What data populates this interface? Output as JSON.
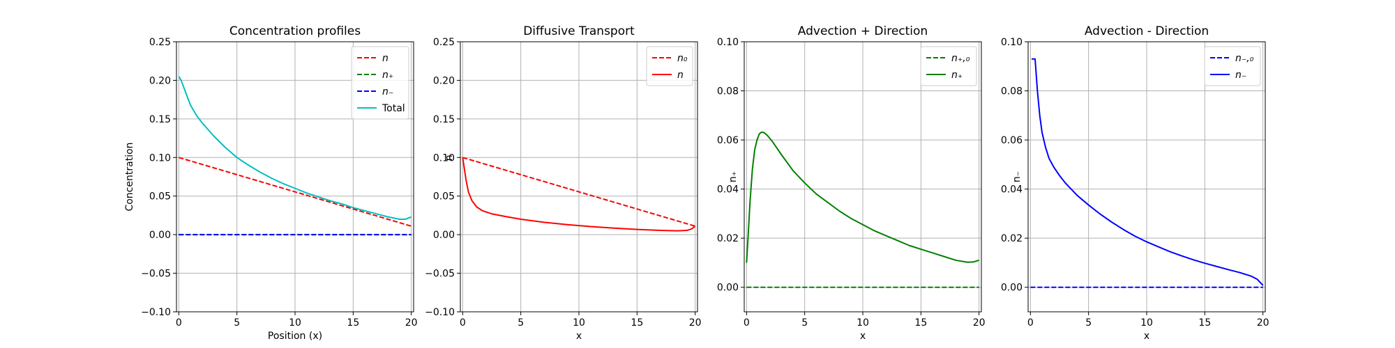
{
  "colors": {
    "red": "#ff0000",
    "green": "#008000",
    "blue": "#0000ff",
    "cyan": "#00bfbf",
    "grid": "#b0b0b0"
  },
  "chart_data": [
    {
      "type": "line",
      "title": "Concentration profiles",
      "xlabel": "Position (x)",
      "ylabel": "Concentration",
      "xlim": [
        -0.2,
        20.2
      ],
      "ylim": [
        -0.1,
        0.25
      ],
      "xticks": [
        "0",
        "5",
        "10",
        "15",
        "20"
      ],
      "xtick_values": [
        0,
        5,
        10,
        15,
        20
      ],
      "yticks": [
        "−0.10",
        "−0.05",
        "0.00",
        "0.05",
        "0.10",
        "0.15",
        "0.20",
        "0.25"
      ],
      "ytick_values": [
        -0.1,
        -0.05,
        0,
        0.05,
        0.1,
        0.15,
        0.2,
        0.25
      ],
      "grid": true,
      "legend_position": "top-right",
      "series": [
        {
          "name": "n",
          "color": "#ff0000",
          "style": "dashed",
          "x": [
            0,
            20
          ],
          "y": [
            0.1,
            0.011
          ]
        },
        {
          "name": "n₊",
          "color": "#008000",
          "style": "dashed",
          "x": [
            0,
            20
          ],
          "y": [
            0,
            0
          ]
        },
        {
          "name": "n₋",
          "color": "#0000ff",
          "style": "dashed",
          "x": [
            0,
            20
          ],
          "y": [
            0,
            0
          ]
        },
        {
          "name": "Total",
          "color": "#00bfbf",
          "style": "solid",
          "x": [
            0,
            0.2,
            0.5,
            1,
            1.5,
            2,
            3,
            4,
            5,
            6,
            7,
            8,
            9,
            10,
            11,
            12,
            13,
            14,
            15,
            16,
            17,
            18,
            19,
            19.5,
            20
          ],
          "y": [
            0.205,
            0.2,
            0.188,
            0.168,
            0.155,
            0.145,
            0.128,
            0.113,
            0.1,
            0.09,
            0.081,
            0.073,
            0.066,
            0.06,
            0.054,
            0.049,
            0.044,
            0.04,
            0.035,
            0.031,
            0.027,
            0.023,
            0.02,
            0.02,
            0.023
          ]
        }
      ]
    },
    {
      "type": "line",
      "title": "Diffusive Transport",
      "xlabel": "x",
      "ylabel": "n",
      "xlim": [
        -0.2,
        20.2
      ],
      "ylim": [
        -0.1,
        0.25
      ],
      "xticks": [
        "0",
        "5",
        "10",
        "15",
        "20"
      ],
      "xtick_values": [
        0,
        5,
        10,
        15,
        20
      ],
      "yticks": [
        "−0.10",
        "−0.05",
        "0.00",
        "0.05",
        "0.10",
        "0.15",
        "0.20",
        "0.25"
      ],
      "ytick_values": [
        -0.1,
        -0.05,
        0,
        0.05,
        0.1,
        0.15,
        0.2,
        0.25
      ],
      "grid": true,
      "legend_position": "top-right",
      "series": [
        {
          "name": "n₀",
          "color": "#ff0000",
          "style": "dashed",
          "x": [
            0,
            20
          ],
          "y": [
            0.1,
            0.011
          ]
        },
        {
          "name": "n",
          "color": "#ff0000",
          "style": "solid",
          "x": [
            0,
            0.15,
            0.3,
            0.5,
            0.8,
            1.2,
            1.7,
            2.5,
            3.5,
            5,
            7,
            9,
            11,
            13,
            15,
            17,
            18.5,
            19.3,
            19.7,
            20
          ],
          "y": [
            0.1,
            0.085,
            0.07,
            0.055,
            0.044,
            0.036,
            0.031,
            0.027,
            0.024,
            0.02,
            0.016,
            0.013,
            0.0105,
            0.0085,
            0.0068,
            0.0055,
            0.005,
            0.0055,
            0.0075,
            0.011
          ]
        }
      ]
    },
    {
      "type": "line",
      "title": "Advection + Direction",
      "xlabel": "x",
      "ylabel": "n₊",
      "xlim": [
        -0.2,
        20.2
      ],
      "ylim": [
        -0.01,
        0.1
      ],
      "xticks": [
        "0",
        "5",
        "10",
        "15",
        "20"
      ],
      "xtick_values": [
        0,
        5,
        10,
        15,
        20
      ],
      "yticks": [
        "0.00",
        "0.02",
        "0.04",
        "0.06",
        "0.08",
        "0.10"
      ],
      "ytick_values": [
        0,
        0.02,
        0.04,
        0.06,
        0.08,
        0.1
      ],
      "grid": true,
      "legend_position": "top-right",
      "series": [
        {
          "name": "n₊,₀",
          "color": "#008000",
          "style": "dashed",
          "x": [
            0,
            20
          ],
          "y": [
            0,
            0
          ]
        },
        {
          "name": "n₊",
          "color": "#008000",
          "style": "solid",
          "x": [
            0,
            0.15,
            0.3,
            0.5,
            0.7,
            0.9,
            1.1,
            1.3,
            1.5,
            1.8,
            2.2,
            3,
            4,
            5,
            6,
            7,
            8,
            9,
            10,
            11,
            12,
            13,
            14,
            15,
            16,
            17,
            18,
            19,
            19.5,
            20
          ],
          "y": [
            0.01,
            0.022,
            0.035,
            0.048,
            0.056,
            0.06,
            0.0625,
            0.0632,
            0.063,
            0.0618,
            0.0595,
            0.054,
            0.0475,
            0.0425,
            0.038,
            0.0345,
            0.031,
            0.028,
            0.0255,
            0.023,
            0.021,
            0.019,
            0.017,
            0.0155,
            0.014,
            0.0125,
            0.011,
            0.0102,
            0.0103,
            0.011
          ]
        }
      ]
    },
    {
      "type": "line",
      "title": "Advection - Direction",
      "xlabel": "x",
      "ylabel": "n₋",
      "xlim": [
        -0.2,
        20.2
      ],
      "ylim": [
        -0.01,
        0.1
      ],
      "xticks": [
        "0",
        "5",
        "10",
        "15",
        "20"
      ],
      "xtick_values": [
        0,
        5,
        10,
        15,
        20
      ],
      "yticks": [
        "0.00",
        "0.02",
        "0.04",
        "0.06",
        "0.08",
        "0.10"
      ],
      "ytick_values": [
        0,
        0.02,
        0.04,
        0.06,
        0.08,
        0.1
      ],
      "grid": true,
      "legend_position": "top-right",
      "series": [
        {
          "name": "n₋,₀",
          "color": "#0000ff",
          "style": "dashed",
          "x": [
            0,
            20
          ],
          "y": [
            0,
            0
          ]
        },
        {
          "name": "n₋",
          "color": "#0000ff",
          "style": "solid",
          "x": [
            0.1,
            0.4,
            0.6,
            0.8,
            1,
            1.3,
            1.6,
            2,
            2.5,
            3,
            4,
            5,
            6,
            7,
            8,
            9,
            10,
            11,
            12,
            13,
            14,
            15,
            16,
            17,
            18,
            19,
            19.5,
            19.8,
            20
          ],
          "y": [
            0.093,
            0.093,
            0.08,
            0.07,
            0.063,
            0.057,
            0.0525,
            0.049,
            0.0455,
            0.0425,
            0.0375,
            0.0335,
            0.0298,
            0.0265,
            0.0235,
            0.0208,
            0.0185,
            0.0165,
            0.0145,
            0.0128,
            0.0112,
            0.0098,
            0.0085,
            0.0072,
            0.006,
            0.0045,
            0.0033,
            0.0018,
            0.0008
          ]
        }
      ]
    }
  ]
}
